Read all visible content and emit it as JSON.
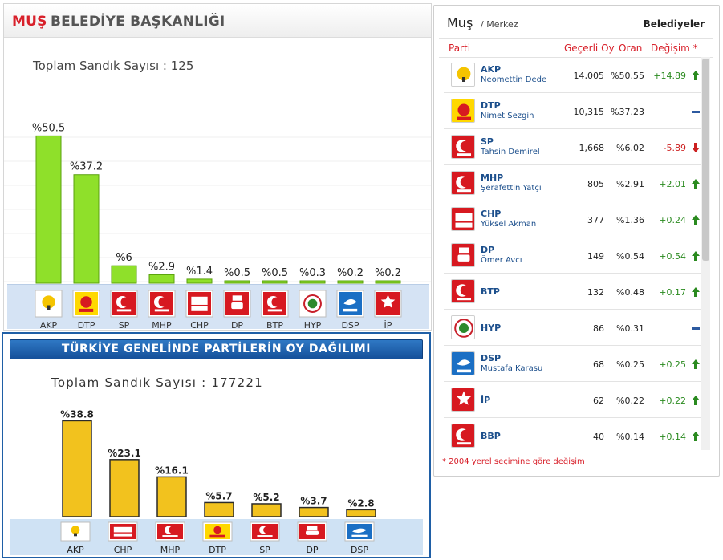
{
  "top_panel": {
    "title_city": "MUŞ",
    "title_rest": "BELEDİYE BAŞKANLIĞI",
    "sandik_label": "Toplam Sandık Sayısı : 125"
  },
  "bottom_panel": {
    "title": "TÜRKİYE GENELİNDE PARTİLERİN OY DAĞILIMI",
    "sandik_label": "Toplam Sandık Sayısı : 177221"
  },
  "right_panel": {
    "city": "Muş",
    "subtitle": "/ Merkez",
    "belediyeler": "Belediyeler",
    "columns": {
      "parti": "Parti",
      "gecerli": "Geçerli Oy",
      "oran": "Oran",
      "degisim": "Değişim *"
    },
    "note": "* 2004 yerel seçimine göre değişim",
    "rows": [
      {
        "party": "AKP",
        "candidate": "Neomettin Dede",
        "votes": "14,005",
        "pct": "%50.55",
        "change": "+14.89",
        "dir": "up"
      },
      {
        "party": "DTP",
        "candidate": "Nimet Sezgin",
        "votes": "10,315",
        "pct": "%37.23",
        "change": "",
        "dir": "flat"
      },
      {
        "party": "SP",
        "candidate": "Tahsin Demirel",
        "votes": "1,668",
        "pct": "%6.02",
        "change": "-5.89",
        "dir": "down"
      },
      {
        "party": "MHP",
        "candidate": "Şerafettin Yatçı",
        "votes": "805",
        "pct": "%2.91",
        "change": "+2.01",
        "dir": "up"
      },
      {
        "party": "CHP",
        "candidate": "Yüksel Akman",
        "votes": "377",
        "pct": "%1.36",
        "change": "+0.24",
        "dir": "up"
      },
      {
        "party": "DP",
        "candidate": "Ömer Avcı",
        "votes": "149",
        "pct": "%0.54",
        "change": "+0.54",
        "dir": "up"
      },
      {
        "party": "BTP",
        "candidate": "",
        "votes": "132",
        "pct": "%0.48",
        "change": "+0.17",
        "dir": "up"
      },
      {
        "party": "HYP",
        "candidate": "",
        "votes": "86",
        "pct": "%0.31",
        "change": "",
        "dir": "flat"
      },
      {
        "party": "DSP",
        "candidate": "Mustafa Karasu",
        "votes": "68",
        "pct": "%0.25",
        "change": "+0.25",
        "dir": "up"
      },
      {
        "party": "İP",
        "candidate": "",
        "votes": "62",
        "pct": "%0.22",
        "change": "+0.22",
        "dir": "up"
      },
      {
        "party": "BBP",
        "candidate": "",
        "votes": "40",
        "pct": "%0.14",
        "change": "+0.14",
        "dir": "up"
      }
    ]
  },
  "colors": {
    "accent_red": "#d8202a",
    "bar_green": "#8fe02a",
    "bar_yellow": "#f2c21e",
    "up_green": "#2a8a1f",
    "down_red": "#cc1f1f",
    "flat_blue": "#2d5aa0"
  },
  "chart_data": [
    {
      "type": "bar",
      "categories": [
        "AKP",
        "DTP",
        "SP",
        "MHP",
        "CHP",
        "DP",
        "BTP",
        "HYP",
        "DSP",
        "İP"
      ],
      "values": [
        50.5,
        37.2,
        6,
        2.9,
        1.4,
        0.5,
        0.5,
        0.3,
        0.2,
        0.2
      ],
      "labels": [
        "%50.5",
        "%37.2",
        "%6",
        "%2.9",
        "%1.4",
        "%0.5",
        "%0.5",
        "%0.3",
        "%0.2",
        "%0.2"
      ],
      "title": "",
      "xlabel": "",
      "ylabel": "",
      "ylim": [
        0,
        55
      ],
      "grid": true
    },
    {
      "type": "bar",
      "categories": [
        "AKP",
        "CHP",
        "MHP",
        "DTP",
        "SP",
        "DP",
        "DSP"
      ],
      "values": [
        38.8,
        23.1,
        16.1,
        5.7,
        5.2,
        3.7,
        2.8
      ],
      "labels": [
        "%38.8",
        "%23.1",
        "%16.1",
        "%5.7",
        "%5.2",
        "%3.7",
        "%2.8"
      ],
      "title": "",
      "xlabel": "",
      "ylabel": "",
      "ylim": [
        0,
        45
      ],
      "grid": false
    }
  ]
}
